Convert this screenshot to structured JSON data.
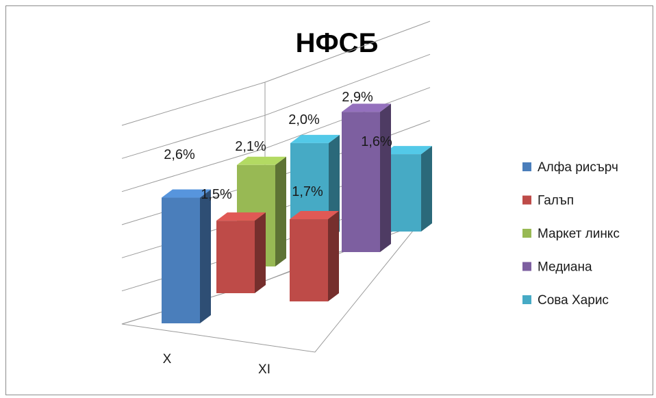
{
  "chart_data": {
    "type": "bar",
    "title": "НФСБ",
    "categories": [
      "X",
      "XI"
    ],
    "series": [
      {
        "name": "Алфа рисърч",
        "color": "#4a7ebb",
        "values": [
          2.6,
          null
        ]
      },
      {
        "name": "Галъп",
        "color": "#be4b48",
        "values": [
          1.5,
          1.7
        ]
      },
      {
        "name": "Маркет линкс",
        "color": "#98b954",
        "values": [
          2.1,
          null
        ]
      },
      {
        "name": "Медиана",
        "color": "#7d5fa0",
        "values": [
          null,
          2.9
        ]
      },
      {
        "name": "Сова Харис",
        "color": "#46aac5",
        "values": [
          2.0,
          1.6
        ]
      }
    ],
    "data_labels": [
      "2,6%",
      "1,5%",
      "2,1%",
      "2,0%",
      "1,7%",
      "2,9%",
      "1,6%"
    ],
    "ylim": [
      0,
      3
    ],
    "grid": true,
    "legend_position": "right",
    "view": "3d-column"
  }
}
